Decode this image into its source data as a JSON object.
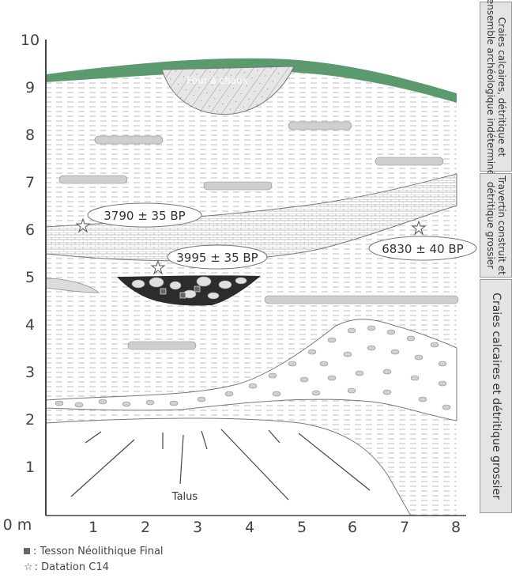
{
  "y_axis": {
    "labels": [
      "10",
      "9",
      "8",
      "7",
      "6",
      "5",
      "4",
      "3",
      "2",
      "1"
    ],
    "zero_label": "0 m"
  },
  "x_axis": {
    "labels": [
      "1",
      "2",
      "3",
      "4",
      "5",
      "6",
      "7",
      "8"
    ]
  },
  "annotations": {
    "four_a_chaux": "Four à chaux",
    "talus": "Talus",
    "date1": "3790 ± 35 BP",
    "date2": "3995 ± 35 BP",
    "date3": "6830 ± 40 BP"
  },
  "side_panels": {
    "top": [
      "Craies calcaires, détritique et",
      "ensemble archéologique indéterminé"
    ],
    "middle": [
      "Travertin construit et",
      "détritique grossier"
    ],
    "bottom": "Craies calcaires et détritique grossier"
  },
  "legend": {
    "sherd": ": Tesson Néolithique Final",
    "c14": ": Datation C14"
  },
  "colors": {
    "grass": "#5a9a6e",
    "line": "#555555",
    "panel": "#e4e4e4"
  }
}
